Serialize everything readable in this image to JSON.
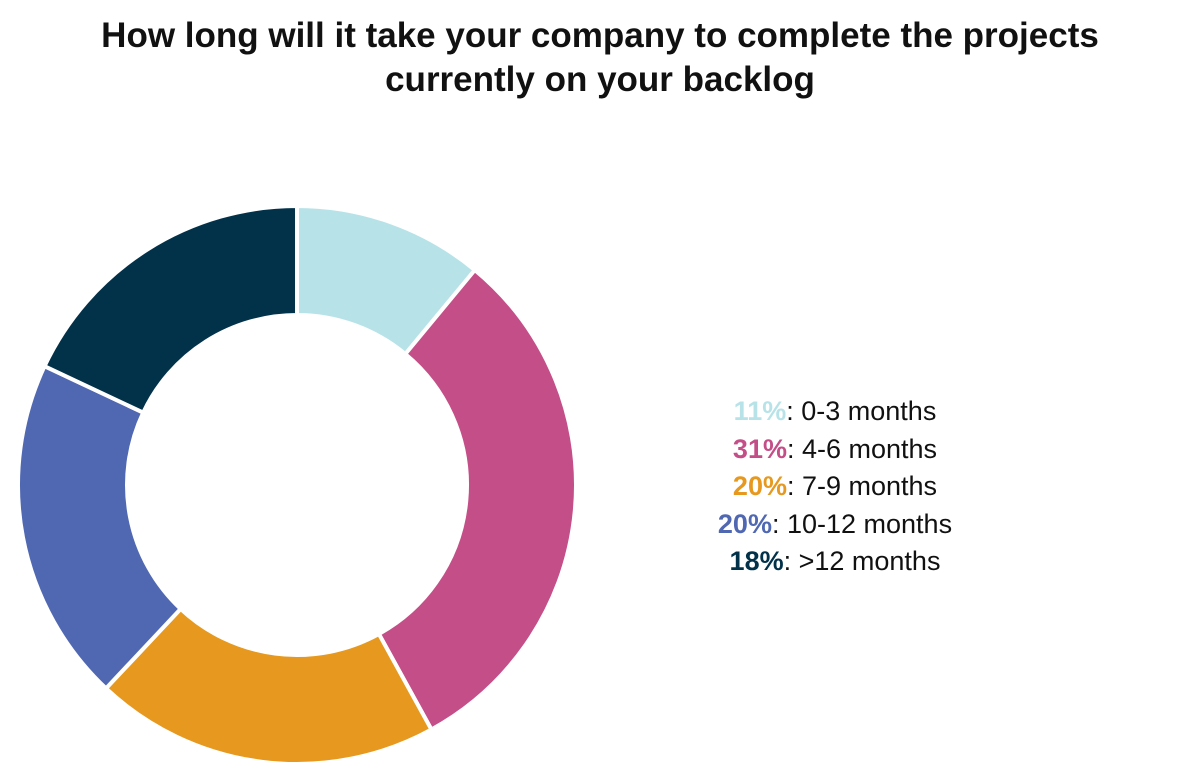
{
  "chart_data": {
    "type": "pie",
    "title_lines": [
      "How long will it take your company to complete the projects",
      "currently on your backlog"
    ],
    "categories": [
      "0-3 months",
      "4-6 months",
      "7-9 months",
      "10-12 months",
      ">12 months"
    ],
    "values": [
      11,
      31,
      20,
      20,
      18
    ],
    "value_labels": [
      "11%",
      "31%",
      "20%",
      "20%",
      "18%"
    ],
    "colors": [
      "#b7e3e8",
      "#c44e87",
      "#e6991e",
      "#5068b2",
      "#02314a"
    ],
    "legend_position": "right"
  }
}
